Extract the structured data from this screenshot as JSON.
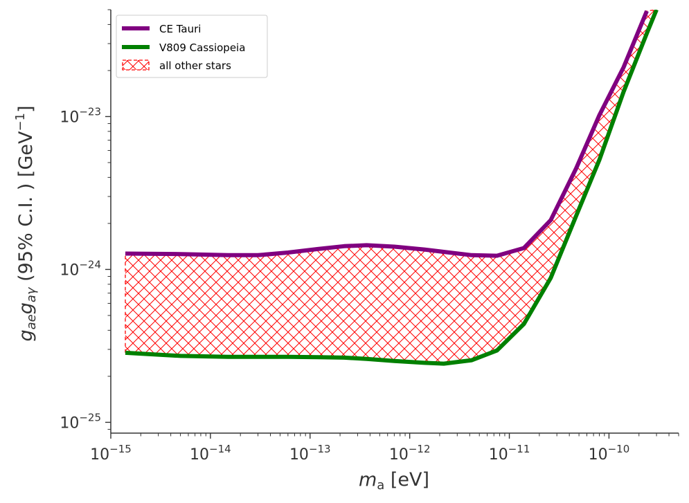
{
  "chart_data": {
    "type": "line",
    "title": "",
    "xlabel": "m_a [eV]",
    "xlabel_parts": {
      "var": "m",
      "sub": "a",
      "unit": " [eV]"
    },
    "ylabel": "g_ae g_aγ (95% C.I. ) [GeV^-1]",
    "ylabel_parts": {
      "v1": "g",
      "s1": "ae",
      "v2": "g",
      "s2": "aγ",
      "rest": " (95% C.I. ) [GeV",
      "exp": "−1",
      "close": "]"
    },
    "xscale": "log",
    "yscale": "log",
    "xlim": [
      1e-15,
      5e-10
    ],
    "ylim": [
      8.5e-26,
      5e-23
    ],
    "grid": false,
    "legend_position": "top-left",
    "x_major_ticks": [
      {
        "value": 1e-15,
        "base": "10",
        "exp": "−15"
      },
      {
        "value": 1e-14,
        "base": "10",
        "exp": "−14"
      },
      {
        "value": 1e-13,
        "base": "10",
        "exp": "−13"
      },
      {
        "value": 1e-12,
        "base": "10",
        "exp": "−12"
      },
      {
        "value": 1e-11,
        "base": "10",
        "exp": "−11"
      },
      {
        "value": 1e-10,
        "base": "10",
        "exp": "−10"
      }
    ],
    "y_major_ticks": [
      {
        "value": 1e-25,
        "base": "10",
        "exp": "−25"
      },
      {
        "value": 1e-24,
        "base": "10",
        "exp": "−24"
      },
      {
        "value": 1e-23,
        "base": "10",
        "exp": "−23"
      }
    ],
    "series": [
      {
        "name": "CE Tauri",
        "color": "#800080",
        "style": "line",
        "x": [
          1.4e-15,
          5e-15,
          1.5e-14,
          3e-14,
          6e-14,
          1.2e-13,
          2.2e-13,
          3.7e-13,
          7e-13,
          1.4e-12,
          2.5e-12,
          4.2e-12,
          7.5e-12,
          1.4e-11,
          2.6e-11,
          4.7e-11,
          8e-11,
          1.4e-10,
          2.4e-10
        ],
        "y": [
          1.27e-24,
          1.26e-24,
          1.24e-24,
          1.24e-24,
          1.29e-24,
          1.36e-24,
          1.42e-24,
          1.44e-24,
          1.41e-24,
          1.35e-24,
          1.29e-24,
          1.24e-24,
          1.23e-24,
          1.38e-24,
          2.1e-24,
          4.6e-24,
          1.02e-23,
          2.1e-23,
          4.9e-23
        ]
      },
      {
        "name": "V809 Cassiopeia",
        "color": "#008000",
        "style": "line",
        "x": [
          1.4e-15,
          5e-15,
          1.5e-14,
          3e-14,
          6e-14,
          1.2e-13,
          2.2e-13,
          3.7e-13,
          7e-13,
          1.4e-12,
          2.2e-12,
          4.2e-12,
          7.5e-12,
          1.4e-11,
          2.6e-11,
          4.7e-11,
          8e-11,
          1.4e-10,
          2.4e-10,
          3e-10
        ],
        "y": [
          2.85e-25,
          2.72e-25,
          2.68e-25,
          2.68e-25,
          2.68e-25,
          2.67e-25,
          2.65e-25,
          2.6e-25,
          2.52e-25,
          2.45e-25,
          2.42e-25,
          2.55e-25,
          2.95e-25,
          4.4e-25,
          8.8e-25,
          2.25e-24,
          5.2e-24,
          1.45e-23,
          3.5e-23,
          5e-23
        ]
      },
      {
        "name": "all other stars",
        "color": "#ff0000",
        "style": "hatched band between CE Tauri (upper) and V809 Cassiopeia (lower)"
      }
    ]
  }
}
